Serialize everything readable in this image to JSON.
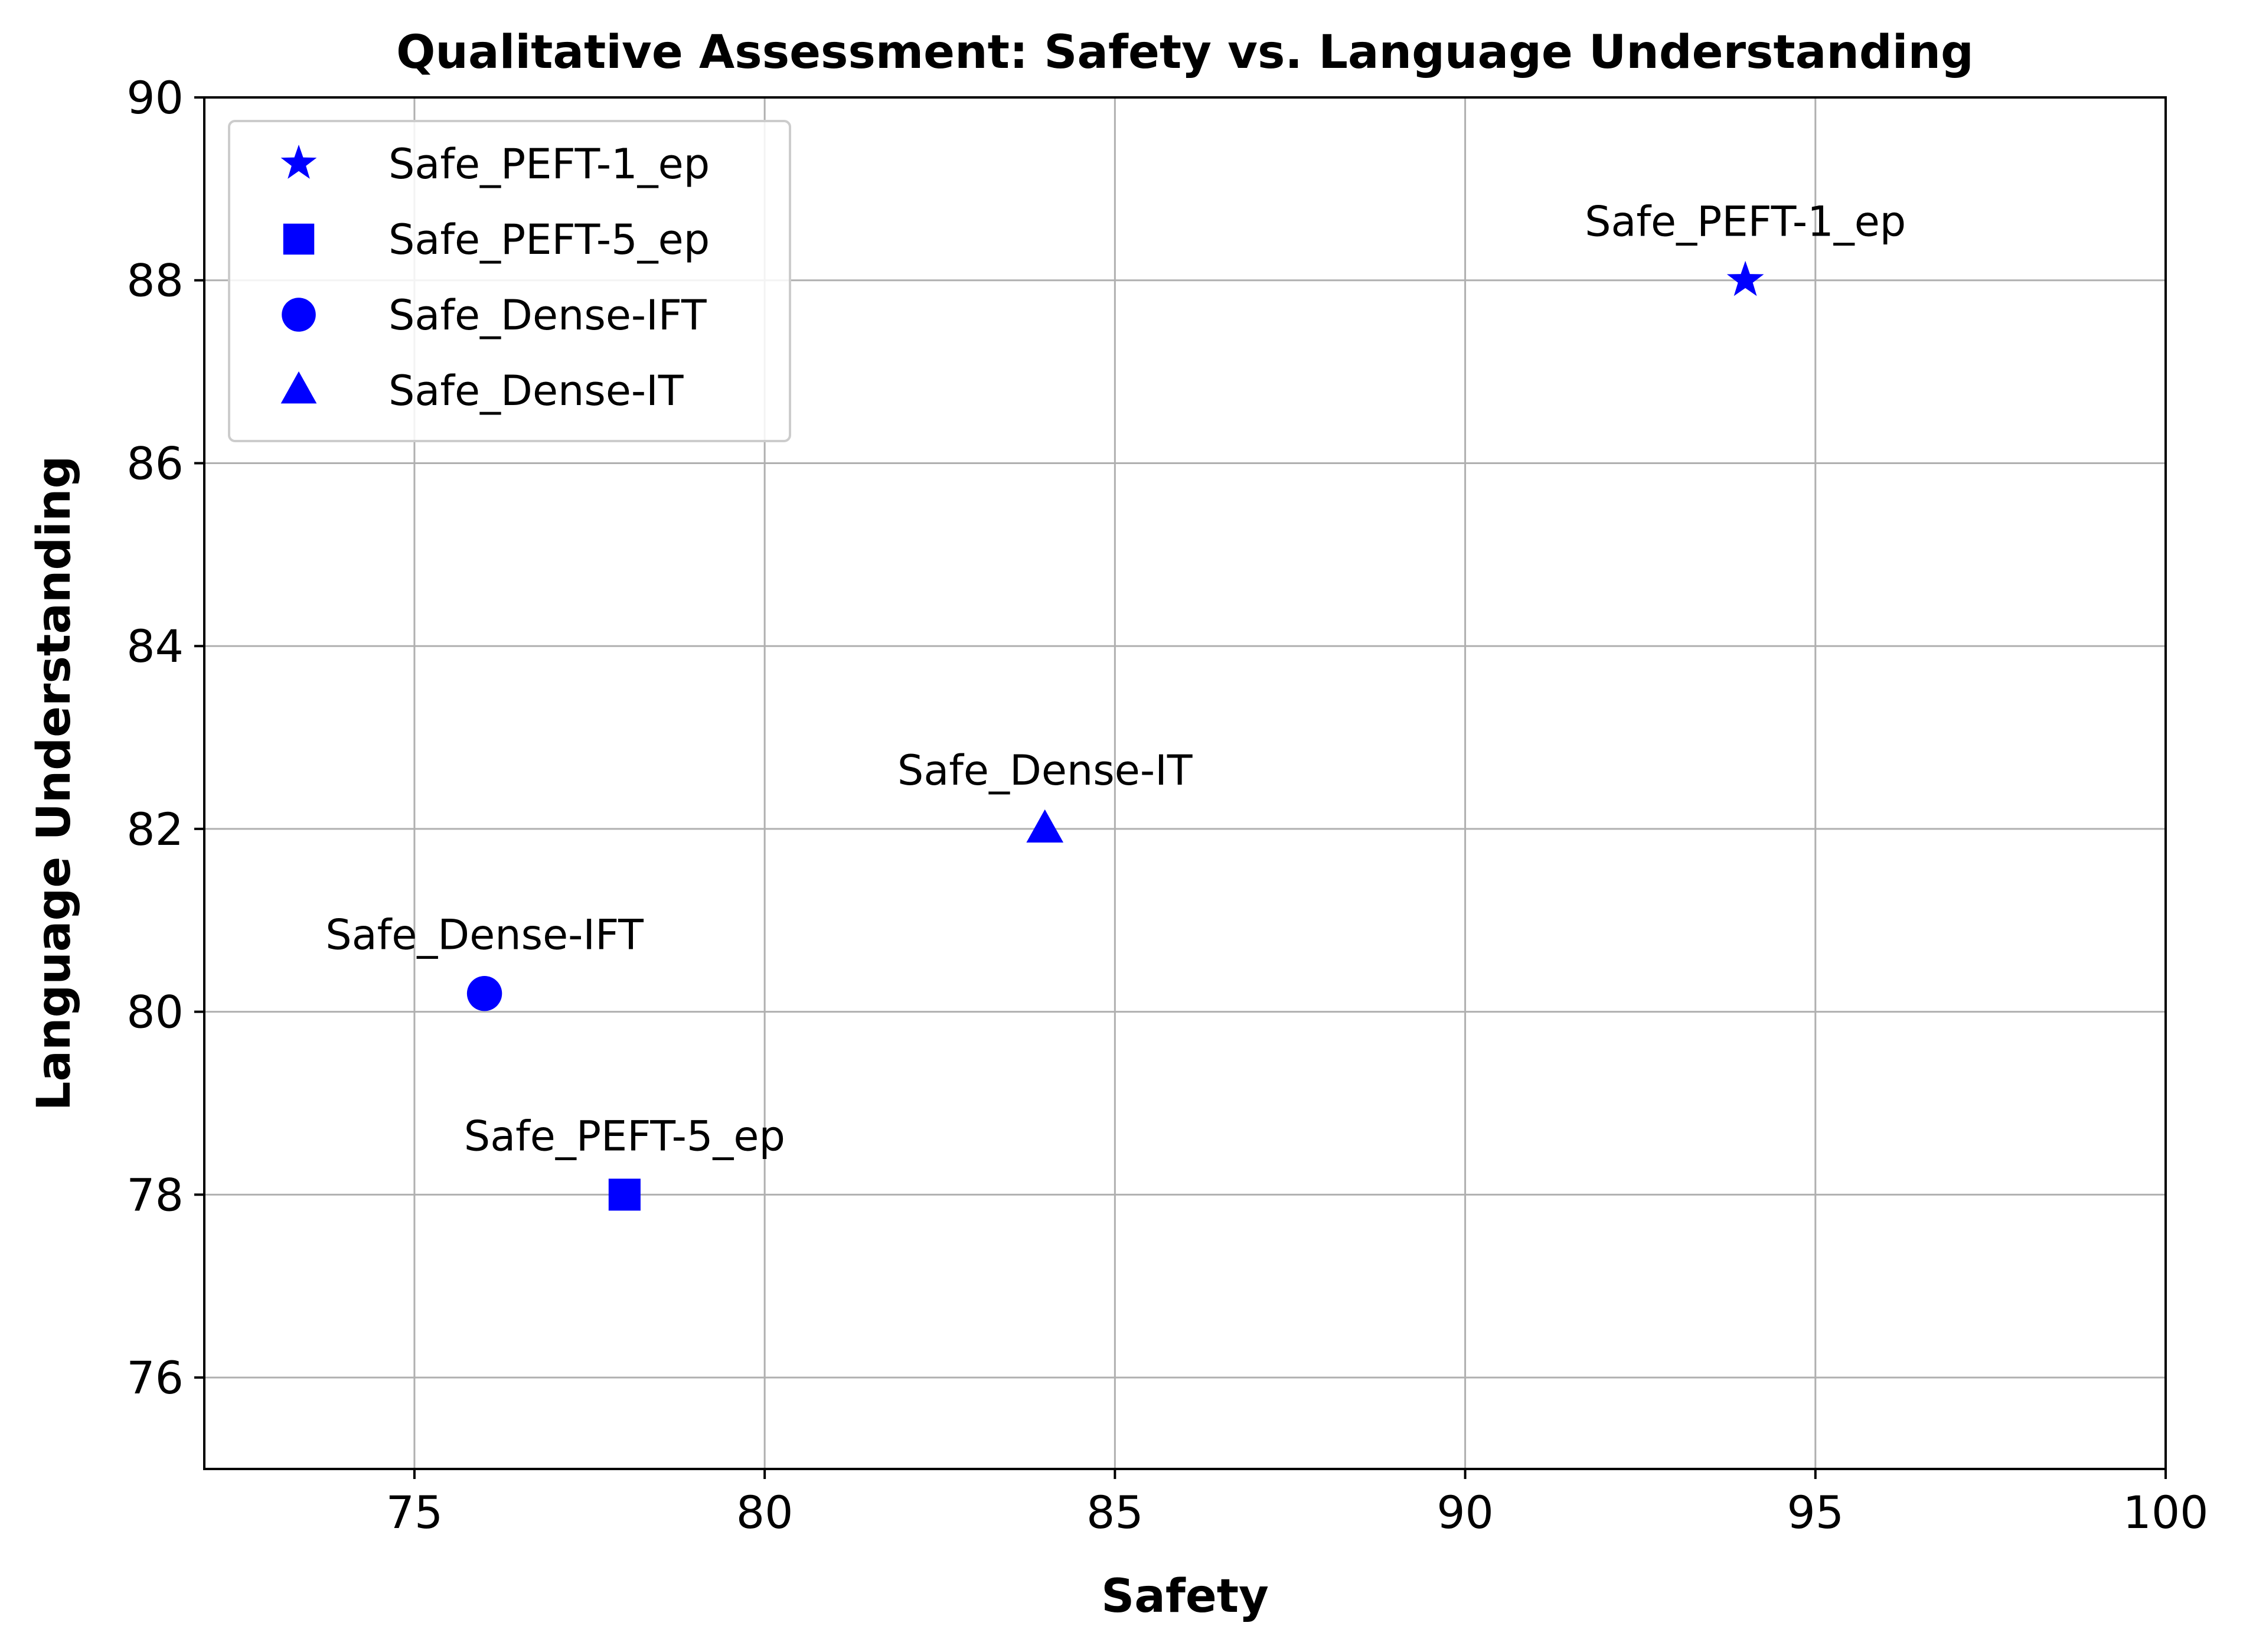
{
  "chart_data": {
    "type": "scatter",
    "title": "Qualitative Assessment: Safety vs. Language Understanding",
    "xlabel": "Safety",
    "ylabel": "Language Understanding",
    "xlim": [
      72,
      100
    ],
    "ylim": [
      75,
      90
    ],
    "xticks": [
      75,
      80,
      85,
      90,
      95,
      100
    ],
    "yticks": [
      76,
      78,
      80,
      82,
      84,
      86,
      88,
      90
    ],
    "grid": true,
    "legend_position": "top-left",
    "color": "#0000ff",
    "series": [
      {
        "name": "Safe_PEFT-1_ep",
        "marker": "star",
        "x": 94,
        "y": 88,
        "label": "Safe_PEFT-1_ep"
      },
      {
        "name": "Safe_PEFT-5_ep",
        "marker": "square",
        "x": 78,
        "y": 78,
        "label": "Safe_PEFT-5_ep"
      },
      {
        "name": "Safe_Dense-IFT",
        "marker": "circle",
        "x": 76,
        "y": 80.2,
        "label": "Safe_Dense-IFT"
      },
      {
        "name": "Safe_Dense-IT",
        "marker": "triangle",
        "x": 84,
        "y": 82,
        "label": "Safe_Dense-IT"
      }
    ]
  }
}
